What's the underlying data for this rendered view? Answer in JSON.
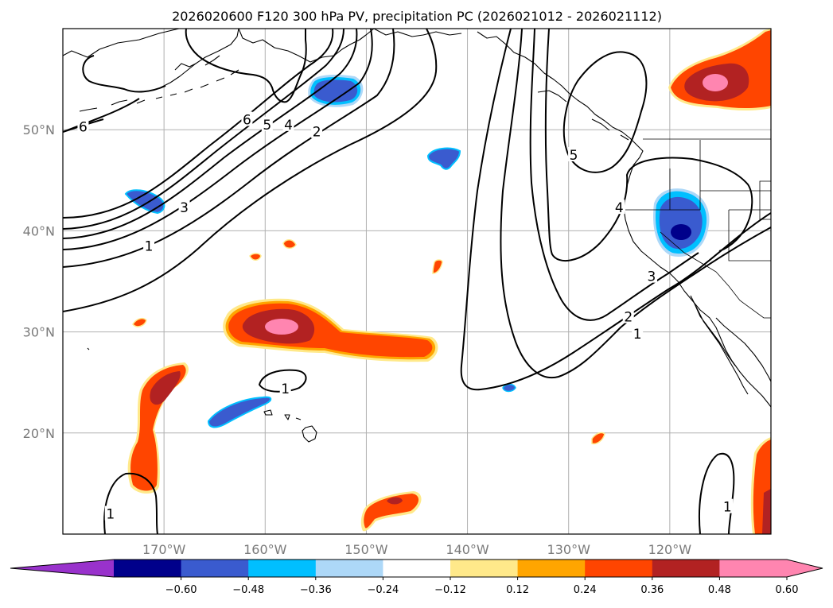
{
  "title": "2026020600 F120 300 hPa PV, precipitation PC (2026021012 - 2026021112)",
  "map": {
    "lon_range": [
      -180,
      -110
    ],
    "lat_range": [
      10,
      60
    ],
    "grid_lines": true,
    "lon_ticks": [
      {
        "lon": -170,
        "label": "170°W"
      },
      {
        "lon": -160,
        "label": "160°W"
      },
      {
        "lon": -150,
        "label": "150°W"
      },
      {
        "lon": -140,
        "label": "140°W"
      },
      {
        "lon": -130,
        "label": "130°W"
      },
      {
        "lon": -120,
        "label": "120°W"
      }
    ],
    "lat_ticks": [
      {
        "lat": 50,
        "label": "50°N"
      },
      {
        "lat": 40,
        "label": "40°N"
      },
      {
        "lat": 30,
        "label": "30°N"
      },
      {
        "lat": 20,
        "label": "20°N"
      }
    ],
    "pv_contour_labels": [
      {
        "text": "6",
        "lon": -178,
        "lat": 50.3
      },
      {
        "text": "6",
        "lon": -161.8,
        "lat": 51.0
      },
      {
        "text": "5",
        "lon": -159.8,
        "lat": 50.5
      },
      {
        "text": "4",
        "lon": -157.7,
        "lat": 50.5
      },
      {
        "text": "2",
        "lon": -154.9,
        "lat": 49.8
      },
      {
        "text": "3",
        "lon": -168.0,
        "lat": 42.3
      },
      {
        "text": "1",
        "lon": -171.5,
        "lat": 38.5
      },
      {
        "text": "1",
        "lon": -158.0,
        "lat": 24.4
      },
      {
        "text": "1",
        "lon": -175.3,
        "lat": 12.0
      },
      {
        "text": "5",
        "lon": -129.5,
        "lat": 47.5
      },
      {
        "text": "4",
        "lon": -125.0,
        "lat": 42.3
      },
      {
        "text": "3",
        "lon": -121.8,
        "lat": 35.5
      },
      {
        "text": "2",
        "lon": -124.1,
        "lat": 31.5
      },
      {
        "text": "1",
        "lon": -123.2,
        "lat": 29.8
      },
      {
        "text": "1",
        "lon": -114.3,
        "lat": 12.7
      }
    ]
  },
  "colorbar": {
    "levels": [
      -0.6,
      -0.48,
      -0.36,
      -0.24,
      -0.12,
      0.12,
      0.24,
      0.36,
      0.48,
      0.6
    ],
    "tick_labels": [
      "−0.60",
      "−0.48",
      "−0.36",
      "−0.24",
      "−0.12",
      "0.12",
      "0.24",
      "0.36",
      "0.48",
      "0.60"
    ],
    "colors": [
      "#9932cc",
      "#00008b",
      "#3a5bcf",
      "#00bfff",
      "#add8f8",
      "#ffffff",
      "#ffe98a",
      "#ffa500",
      "#ff4500",
      "#b22222",
      "#ff85b0"
    ],
    "extend": "both"
  }
}
